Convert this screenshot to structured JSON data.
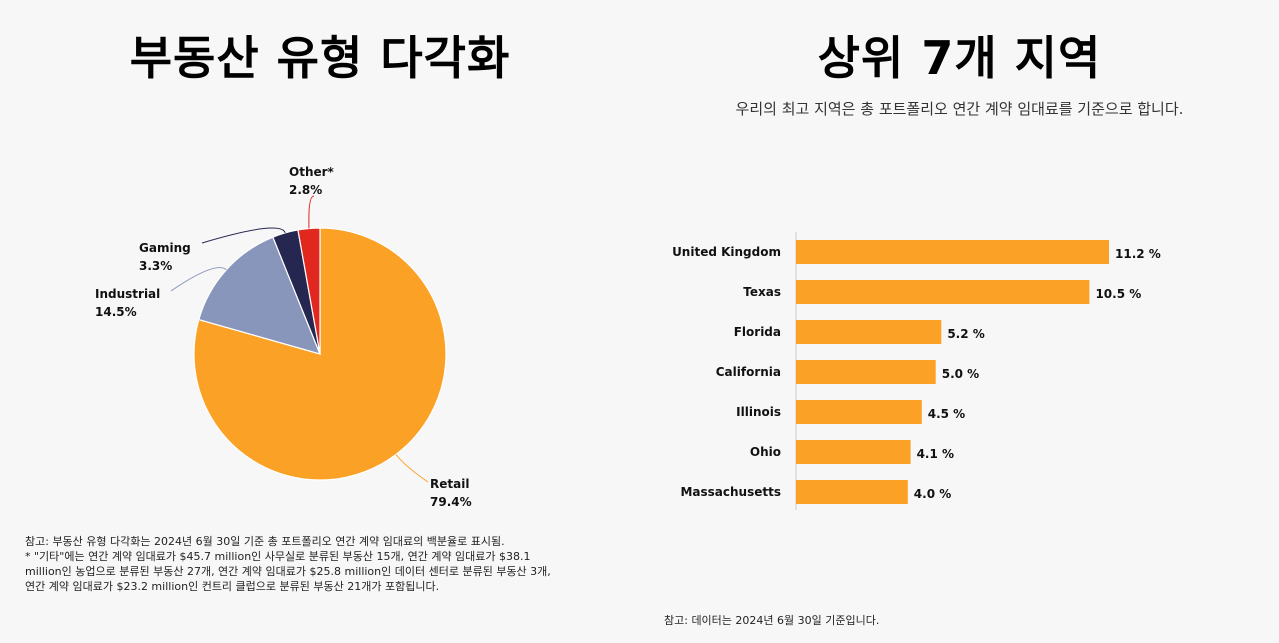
{
  "left": {
    "title": "부동산 유형 다각화",
    "note_lines": [
      "참고: 부동산 유형 다각화는 2024년 6월 30일 기준 총 포트폴리오 연간 계약 임대료의 백분율로 표시됨.",
      "* \"기타\"에는 연간 계약 임대료가 $45.7 million인 사무실로 분류된 부동산 15개, 연간 계약 임대료가 $38.1",
      "million인 농업으로 분류된 부동산 27개, 연간 계약 임대료가 $25.8 million인 데이터 센터로 분류된 부동산 3개,",
      "연간 계약 임대료가 $23.2 million인 컨트리 클럽으로 분류된 부동산 21개가 포함됩니다."
    ]
  },
  "right": {
    "title": "상위 7개 지역",
    "subtitle": "우리의 최고 지역은 총 포트폴리오 연간 계약 임대료를 기준으로 합니다.",
    "note": "참고: 데이터는 2024년 6월 30일 기준입니다."
  },
  "chart_data": [
    {
      "type": "pie",
      "slices": [
        {
          "name": "Retail",
          "value": 79.4,
          "label": "79.4%",
          "color": "#fba126"
        },
        {
          "name": "Industrial",
          "value": 14.5,
          "label": "14.5%",
          "color": "#8896bc"
        },
        {
          "name": "Gaming",
          "value": 3.3,
          "label": "3.3%",
          "color": "#262750"
        },
        {
          "name": "Other*",
          "value": 2.8,
          "label": "2.8%",
          "color": "#e0281e"
        }
      ]
    },
    {
      "type": "bar",
      "orientation": "horizontal",
      "categories": [
        "United Kingdom",
        "Texas",
        "Florida",
        "California",
        "Illinois",
        "Ohio",
        "Massachusetts"
      ],
      "values": [
        11.2,
        10.5,
        5.2,
        5.0,
        4.5,
        4.1,
        4.0
      ],
      "value_labels": [
        "11.2 %",
        "10.5 %",
        "5.2 %",
        "5.0 %",
        "4.5 %",
        "4.1 %",
        "4.0 %"
      ],
      "color": "#fba126",
      "xlim": [
        0,
        11.2
      ]
    }
  ]
}
